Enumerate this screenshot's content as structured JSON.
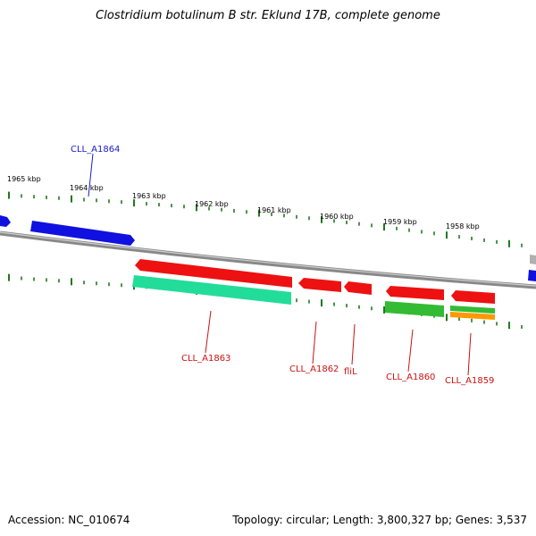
{
  "title": "Clostridium botulinum B str. Eklund 17B, complete genome",
  "accession_text": "Accession: NC_010674",
  "topology_text": "Topology: circular; Length: 3,800,327 bp; Genes: 3,537",
  "colors": {
    "backbone": "#888888",
    "tick": "#1f7a1f",
    "blue_gene": "#1010e0",
    "red_gene": "#ee1111",
    "cds_teal": "#22dd99",
    "cds_green": "#33bb33",
    "cds_orange": "#ff9900",
    "blue_label": "#1a1acc",
    "red_label": "#cc1111"
  },
  "scale_labels": [
    "1965 kbp",
    "1964 kbp",
    "1963 kbp",
    "1962 kbp",
    "1961 kbp",
    "1960 kbp",
    "1959 kbp",
    "1958 kbp"
  ],
  "genes": [
    {
      "name": "CLL_A1864"
    },
    {
      "name": "CLL_A1863"
    },
    {
      "name": "CLL_A1862"
    },
    {
      "name": "fliL"
    },
    {
      "name": "CLL_A1860"
    },
    {
      "name": "CLL_A1859"
    }
  ]
}
